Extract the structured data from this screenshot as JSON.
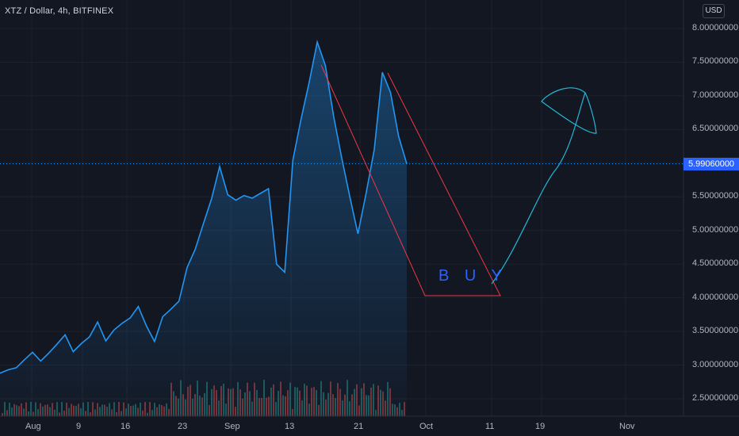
{
  "header": {
    "symbol": "XTZ / Dollar, 4h, BITFINEX",
    "currency": "USD"
  },
  "last_price": "5.99060000",
  "annotation": {
    "text": "B U Y"
  },
  "colors": {
    "background": "#131722",
    "price_line": "#2196f3",
    "drawing_red": "#f23645",
    "drawing_cyan": "#22b7d8",
    "badge": "#2962ff",
    "volume_up": "#26a69a",
    "volume_down": "#ef5350"
  },
  "chart_data": {
    "type": "area",
    "title": "XTZ / Dollar, 4h, BITFINEX",
    "x_tick_labels": [
      "Aug",
      "9",
      "16",
      "23",
      "Sep",
      "13",
      "21",
      "Oct",
      "11",
      "19",
      "Nov"
    ],
    "y_tick_labels": [
      "8.00000000",
      "7.50000000",
      "7.00000000",
      "6.50000000",
      "6.00000000",
      "5.50000000",
      "5.00000000",
      "4.50000000",
      "4.00000000",
      "3.50000000",
      "3.00000000",
      "2.50000000"
    ],
    "ylim": [
      2.3,
      8.2
    ],
    "series": [
      {
        "values": [
          2.88,
          2.93,
          2.96,
          3.08,
          3.19,
          3.06,
          3.18,
          3.31,
          3.45,
          3.2,
          3.32,
          3.42,
          3.64,
          3.36,
          3.52,
          3.62,
          3.7,
          3.87,
          3.58,
          3.35,
          3.72,
          3.83,
          3.95,
          4.45,
          4.72,
          5.1,
          5.47,
          5.95,
          5.53,
          5.45,
          5.52,
          5.48,
          5.55,
          5.62,
          4.5,
          4.38,
          6.05,
          6.65,
          7.2,
          7.8,
          7.45,
          6.7,
          6.08,
          5.5,
          4.95,
          5.55,
          6.2,
          7.35,
          7.05,
          6.4,
          5.99
        ]
      }
    ],
    "volume_note": "volume histogram bars along the bottom",
    "grid": true,
    "legend": "none",
    "annotations": [
      "B U Y"
    ]
  }
}
